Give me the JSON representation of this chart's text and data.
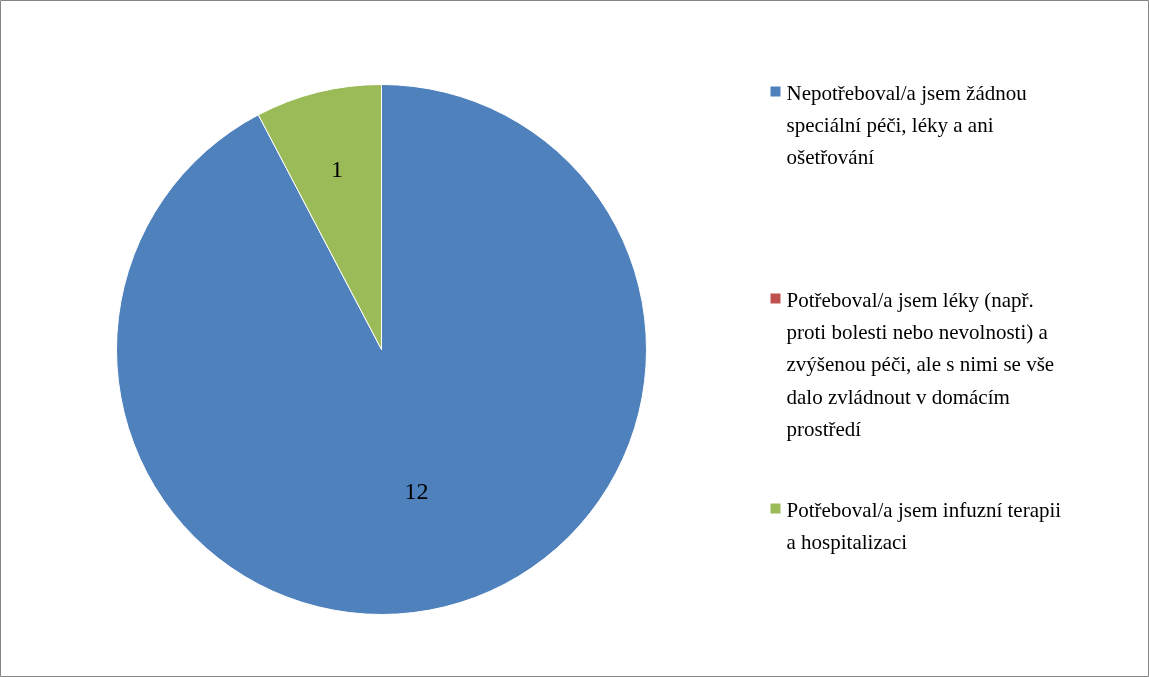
{
  "chart_data": {
    "type": "pie",
    "categories": [
      "Nepotřeboval/a jsem žádnou speciální péči, léky a ani ošetřování",
      "Potřeboval/a jsem léky (např. proti bolesti nebo nevolnosti) a zvýšenou péči, ale s nimi se vše dalo zvládnout v domácím prostředí",
      "Potřeboval/a jsem infuzní terapii a hospitalizaci"
    ],
    "values": [
      12,
      0,
      1
    ],
    "colors": [
      "#4f81bd",
      "#c0504d",
      "#9bbb59"
    ],
    "value_labels": [
      "12",
      null,
      "1"
    ],
    "legend": "right"
  }
}
